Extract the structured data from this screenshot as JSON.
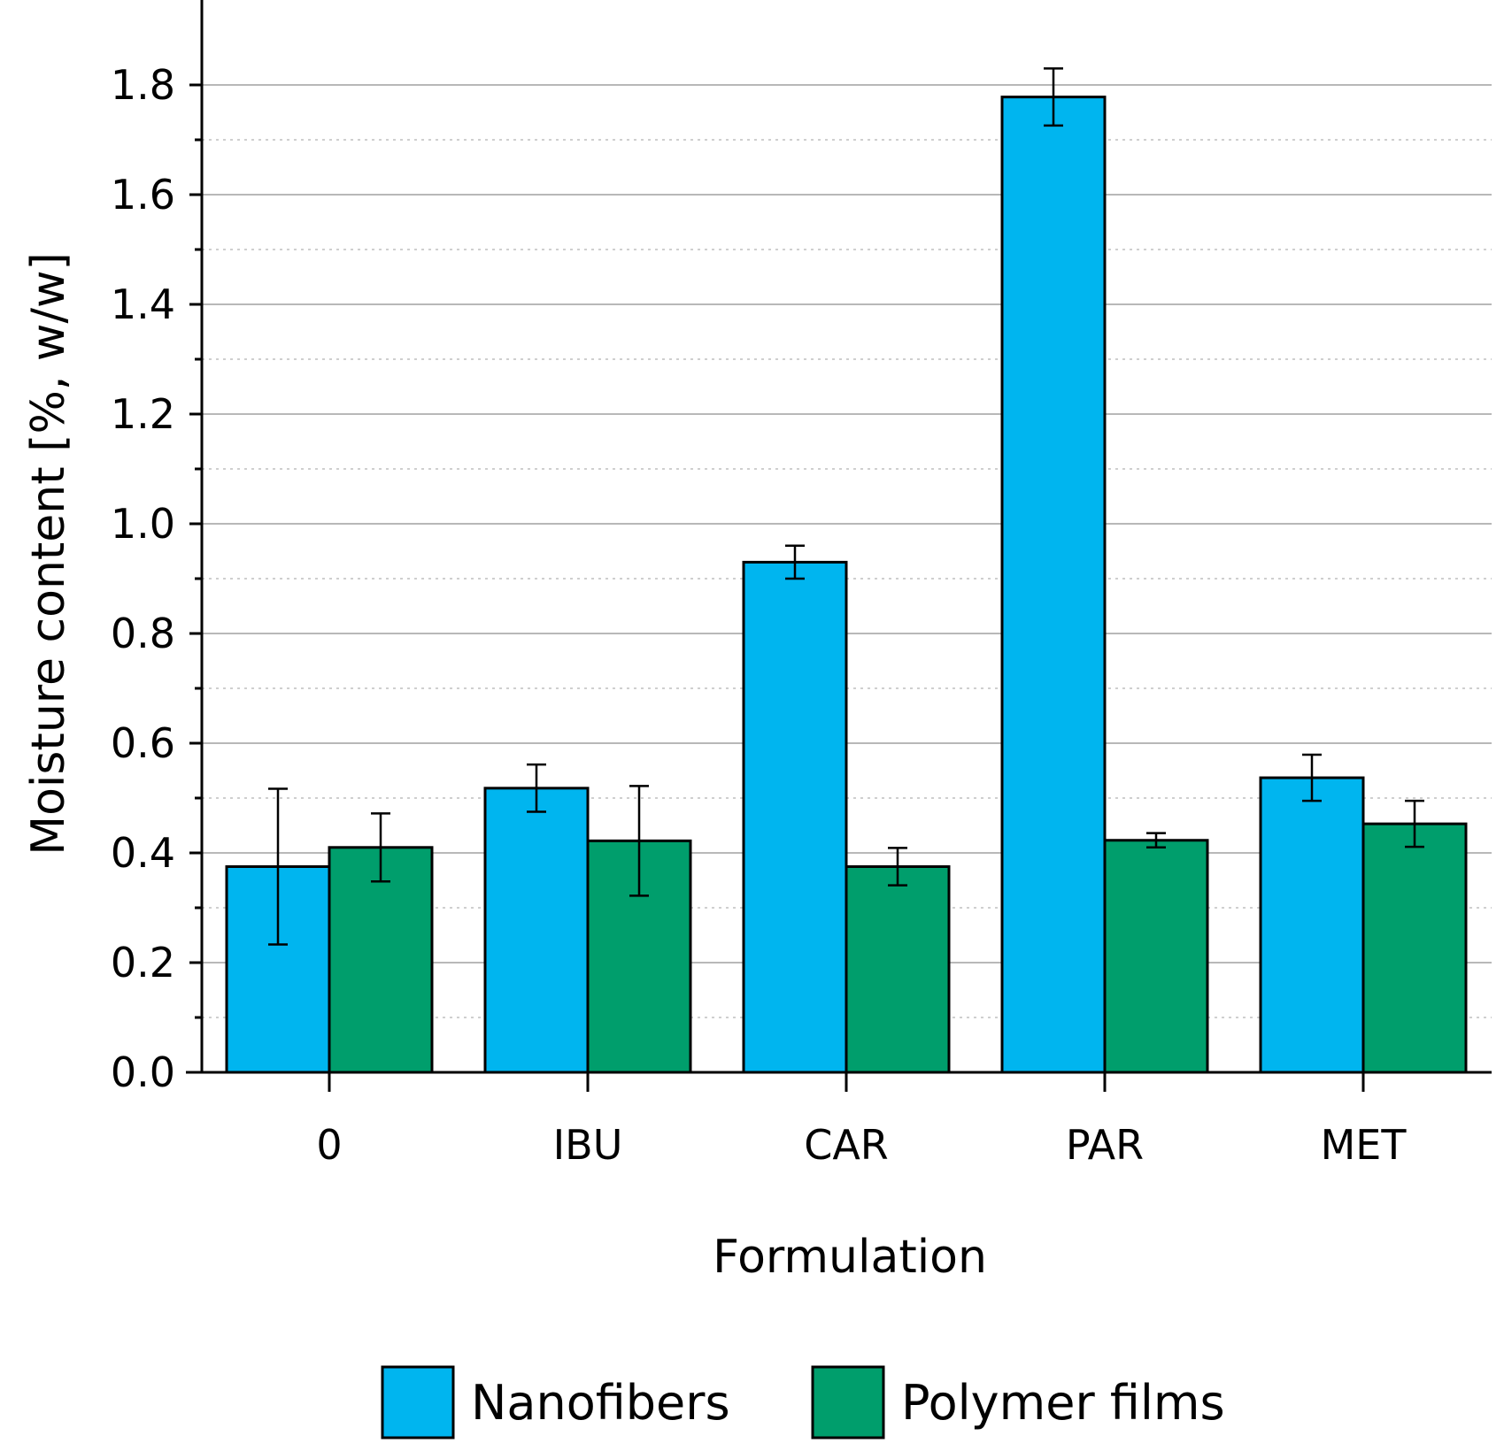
{
  "chart_data": {
    "type": "bar",
    "xlabel": "Formulation",
    "ylabel": "Moisture content [%, w/w]",
    "categories": [
      "0",
      "IBU",
      "CAR",
      "PAR",
      "MET"
    ],
    "series": [
      {
        "name": "Nanofibers",
        "color": "#00B5EF",
        "values": [
          0.375,
          0.518,
          0.93,
          1.778,
          0.537
        ],
        "errors": [
          0.142,
          0.043,
          0.03,
          0.052,
          0.042
        ]
      },
      {
        "name": "Polymer films",
        "color": "#009E6C",
        "values": [
          0.41,
          0.422,
          0.375,
          0.423,
          0.453
        ],
        "errors": [
          0.062,
          0.1,
          0.034,
          0.013,
          0.042
        ]
      }
    ],
    "ylim": [
      0,
      1.9
    ],
    "yticks": [
      0.0,
      0.2,
      0.4,
      0.6,
      0.8,
      1.0,
      1.2,
      1.4,
      1.6,
      1.8
    ],
    "ytick_labels": [
      "0.0",
      "0.2",
      "0.4",
      "0.6",
      "0.8",
      "1.0",
      "1.2",
      "1.4",
      "1.6",
      "1.8"
    ],
    "grid": true,
    "legend": "bottom"
  }
}
